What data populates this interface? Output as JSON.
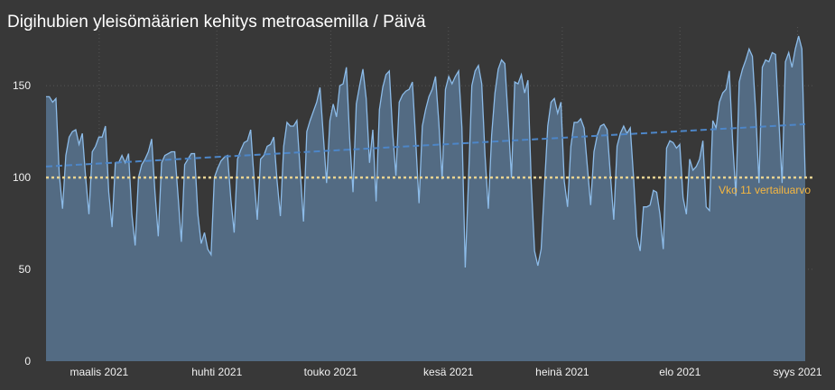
{
  "chart_data": {
    "type": "area",
    "title": "Digihubien yleisömäärien kehitys metroasemilla / Päivä",
    "x_start": "2021-02-15",
    "x_end": "2021-09-03",
    "ylim": [
      0,
      178
    ],
    "y_ticks": [
      0,
      50,
      100,
      150
    ],
    "x_ticks": [
      {
        "label": "maalis 2021",
        "date": "2021-03-01"
      },
      {
        "label": "huhti 2021",
        "date": "2021-04-01"
      },
      {
        "label": "touko 2021",
        "date": "2021-05-01"
      },
      {
        "label": "kesä 2021",
        "date": "2021-06-01"
      },
      {
        "label": "heinä 2021",
        "date": "2021-07-01"
      },
      {
        "label": "elo 2021",
        "date": "2021-08-01"
      },
      {
        "label": "syys 2021",
        "date": "2021-09-01"
      }
    ],
    "grid": true,
    "series": [
      {
        "values": [
          144,
          144,
          141,
          143,
          102,
          83,
          112,
          122,
          125,
          126,
          118,
          124,
          100,
          80,
          114,
          117,
          122,
          122,
          128,
          92,
          73,
          108,
          108,
          112,
          108,
          113,
          80,
          63,
          100,
          107,
          110,
          114,
          121,
          92,
          68,
          108,
          112,
          113,
          114,
          114,
          90,
          65,
          107,
          110,
          113,
          113,
          80,
          64,
          70,
          61,
          58,
          100,
          105,
          109,
          111,
          112,
          88,
          70,
          110,
          115,
          119,
          120,
          126,
          100,
          77,
          110,
          112,
          117,
          118,
          122,
          98,
          79,
          117,
          130,
          128,
          128,
          131,
          104,
          76,
          125,
          131,
          136,
          141,
          149,
          123,
          97,
          131,
          140,
          133,
          150,
          151,
          160,
          121,
          92,
          140,
          150,
          159,
          143,
          108,
          126,
          87,
          137,
          149,
          156,
          158,
          125,
          101,
          141,
          145,
          147,
          148,
          152,
          120,
          86,
          128,
          137,
          144,
          148,
          155,
          130,
          99,
          148,
          155,
          151,
          155,
          158,
          127,
          51,
          99,
          150,
          158,
          161,
          151,
          112,
          83,
          123,
          146,
          159,
          164,
          162,
          132,
          100,
          152,
          151,
          156,
          146,
          153,
          97,
          60,
          52,
          61,
          95,
          128,
          141,
          143,
          135,
          141,
          98,
          84,
          117,
          130,
          130,
          132,
          127,
          106,
          85,
          114,
          123,
          128,
          129,
          126,
          101,
          77,
          117,
          124,
          128,
          124,
          127,
          100,
          68,
          60,
          84,
          84,
          85,
          93,
          92,
          80,
          61,
          116,
          120,
          119,
          116,
          118,
          89,
          80,
          110,
          104,
          106,
          110,
          120,
          84,
          82,
          131,
          127,
          141,
          146,
          148,
          158,
          120,
          90,
          152,
          159,
          164,
          170,
          166,
          136,
          97,
          160,
          164,
          163,
          168,
          167,
          132,
          97,
          163,
          168,
          160,
          170,
          177,
          170,
          100
        ]
      }
    ],
    "trend": {
      "start": 106,
      "end": 129
    },
    "reference": {
      "value": 100,
      "label": "Vko 11 vertailuarvo"
    },
    "colors": {
      "background": "#383838",
      "area_fill": "#536b83",
      "line": "#8cbbe8",
      "trend": "#4d86c8",
      "reference": "#e8d392",
      "reference_label": "#f5b640",
      "grid": "#555555",
      "text": "#f2f2f2"
    }
  }
}
